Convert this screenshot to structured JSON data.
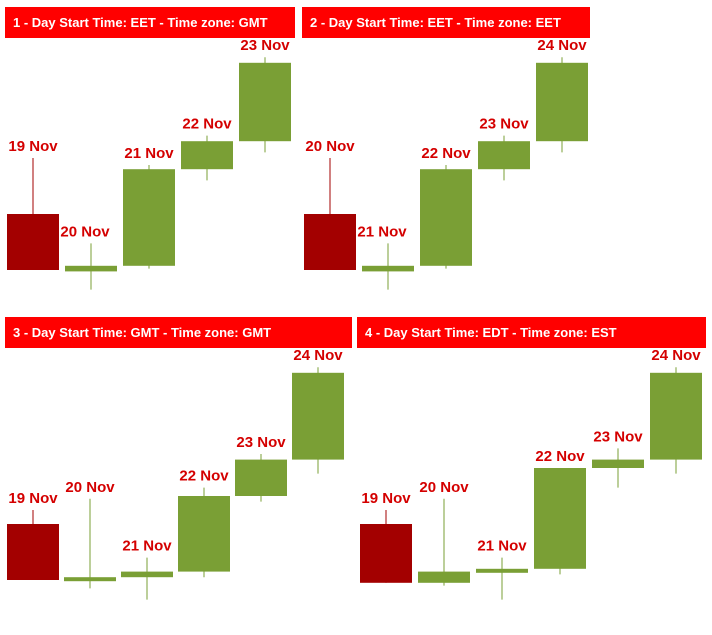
{
  "colors": {
    "up": "#7a9f35",
    "down": "#a30000",
    "title_bg": "#ff0000",
    "title_text": "#ffffff",
    "label": "#d40000"
  },
  "chart_data": [
    {
      "type": "candlestick",
      "title": "1 - Day Start Time: EET - Time zone: GMT",
      "candles": [
        {
          "label": "19 Nov",
          "open": 30,
          "high": 50,
          "low": 10,
          "close": 10
        },
        {
          "label": "20 Nov",
          "open": 9.5,
          "high": 19.5,
          "low": 3,
          "close": 11.5
        },
        {
          "label": "21 Nov",
          "open": 11.5,
          "high": 47.5,
          "low": 10.5,
          "close": 46
        },
        {
          "label": "22 Nov",
          "open": 46,
          "high": 58,
          "low": 42,
          "close": 56
        },
        {
          "label": "23 Nov",
          "open": 56,
          "high": 86,
          "low": 52,
          "close": 84
        }
      ]
    },
    {
      "type": "candlestick",
      "title": "2 - Day Start Time: EET - Time zone: EET",
      "candles": [
        {
          "label": "20 Nov",
          "open": 30,
          "high": 50,
          "low": 10,
          "close": 10
        },
        {
          "label": "21 Nov",
          "open": 9.5,
          "high": 19.5,
          "low": 3,
          "close": 11.5
        },
        {
          "label": "22 Nov",
          "open": 11.5,
          "high": 47.5,
          "low": 10.5,
          "close": 46
        },
        {
          "label": "23 Nov",
          "open": 46,
          "high": 58,
          "low": 42,
          "close": 56
        },
        {
          "label": "24 Nov",
          "open": 56,
          "high": 86,
          "low": 52,
          "close": 84
        }
      ]
    },
    {
      "type": "candlestick",
      "title": "3 - Day Start Time: GMT - Time zone: GMT",
      "candles": [
        {
          "label": "19 Nov",
          "open": 30,
          "high": 35,
          "low": 10,
          "close": 10
        },
        {
          "label": "20 Nov",
          "open": 10,
          "high": 39,
          "low": 7,
          "close": 11
        },
        {
          "label": "21 Nov",
          "open": 11,
          "high": 18,
          "low": 3,
          "close": 13
        },
        {
          "label": "22 Nov",
          "open": 13,
          "high": 43,
          "low": 11,
          "close": 40
        },
        {
          "label": "23 Nov",
          "open": 40,
          "high": 55,
          "low": 38,
          "close": 53
        },
        {
          "label": "24 Nov",
          "open": 53,
          "high": 86,
          "low": 48,
          "close": 84
        }
      ]
    },
    {
      "type": "candlestick",
      "title": "4 - Day Start Time: EDT - Time zone: EST",
      "candles": [
        {
          "label": "19 Nov",
          "open": 30,
          "high": 35,
          "low": 9,
          "close": 9
        },
        {
          "label": "20 Nov",
          "open": 9,
          "high": 39,
          "low": 8,
          "close": 13
        },
        {
          "label": "21 Nov",
          "open": 13,
          "high": 18,
          "low": 3,
          "close": 14
        },
        {
          "label": "22 Nov",
          "open": 14,
          "high": 50,
          "low": 12,
          "close": 50
        },
        {
          "label": "23 Nov",
          "open": 50,
          "high": 57,
          "low": 43,
          "close": 53
        },
        {
          "label": "24 Nov",
          "open": 53,
          "high": 86,
          "low": 48,
          "close": 84
        }
      ]
    }
  ]
}
